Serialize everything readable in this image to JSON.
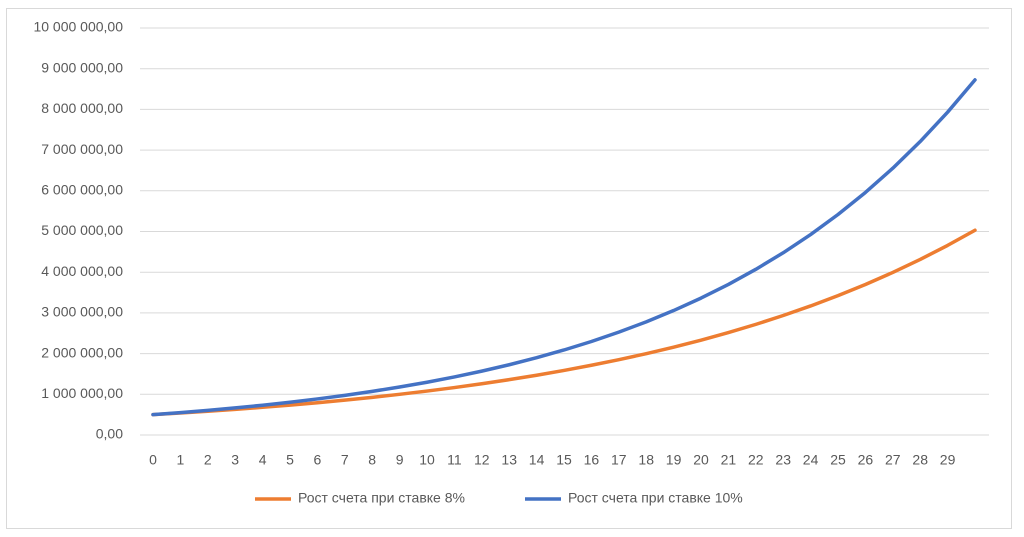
{
  "chart_data": {
    "type": "line",
    "categories": [
      "0",
      "1",
      "2",
      "3",
      "4",
      "5",
      "6",
      "7",
      "8",
      "9",
      "10",
      "11",
      "12",
      "13",
      "14",
      "15",
      "16",
      "17",
      "18",
      "19",
      "20",
      "21",
      "22",
      "23",
      "24",
      "25",
      "26",
      "27",
      "28",
      "29",
      null
    ],
    "series": [
      {
        "name": "Рост счета при ставке 8%",
        "color": "#ed7d31",
        "values": [
          500000,
          540000,
          583200,
          629856,
          680244,
          734664,
          793437,
          856912,
          925465,
          999502,
          1079462,
          1165819,
          1259085,
          1359812,
          1468597,
          1586085,
          1712972,
          1850010,
          1998011,
          2157852,
          2330480,
          2516918,
          2718271,
          2935733,
          3170592,
          3424239,
          3698178,
          3994032,
          4313554,
          4658639,
          5031330
        ]
      },
      {
        "name": "Рост счета при ставке 10%",
        "color": "#4472c4",
        "values": [
          500000,
          550000,
          605000,
          665500,
          732050,
          805255,
          885781,
          974359,
          1071794,
          1178974,
          1296871,
          1426558,
          1569214,
          1726136,
          1898749,
          2088624,
          2297486,
          2527235,
          2779959,
          3057955,
          3363750,
          3700125,
          4070137,
          4477151,
          4924866,
          5417353,
          5959088,
          6554997,
          7210497,
          7931546,
          8724701
        ]
      }
    ],
    "ylim": [
      0,
      10000000
    ],
    "yticks": [
      {
        "value": 0,
        "label": "0,00"
      },
      {
        "value": 1000000,
        "label": "1 000 000,00"
      },
      {
        "value": 2000000,
        "label": "2 000 000,00"
      },
      {
        "value": 3000000,
        "label": "3 000 000,00"
      },
      {
        "value": 4000000,
        "label": "4 000 000,00"
      },
      {
        "value": 5000000,
        "label": "5 000 000,00"
      },
      {
        "value": 6000000,
        "label": "6 000 000,00"
      },
      {
        "value": 7000000,
        "label": "7 000 000,00"
      },
      {
        "value": 8000000,
        "label": "8 000 000,00"
      },
      {
        "value": 9000000,
        "label": "9 000 000,00"
      },
      {
        "value": 10000000,
        "label": "10 000 000,00"
      }
    ],
    "grid": true,
    "legend": "bottom"
  }
}
